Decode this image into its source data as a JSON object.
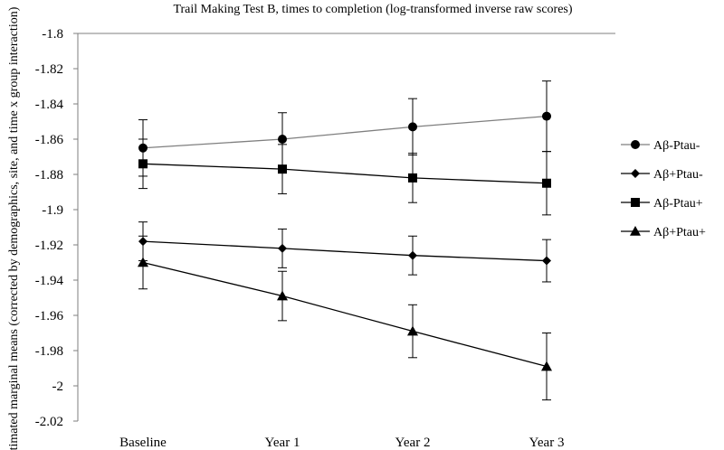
{
  "chart_data": {
    "type": "line",
    "title": "Trail Making Test B, times to completion (log-transformed inverse raw scores)",
    "xlabel": "",
    "ylabel": "Estimated marginal means (corrected by demographics, site, and time x group interaction)",
    "categories": [
      "Baseline",
      "Year 1",
      "Year 2",
      "Year 3"
    ],
    "ylim": [
      -2.02,
      -1.8
    ],
    "yticks": [
      -1.8,
      -1.82,
      -1.84,
      -1.86,
      -1.88,
      -1.9,
      -1.92,
      -1.94,
      -1.96,
      -1.98,
      -2,
      -2.02
    ],
    "ytick_labels": [
      "-1.8",
      "-1.82",
      "-1.84",
      "-1.86",
      "-1.88",
      "-1.9",
      "-1.92",
      "-1.94",
      "-1.96",
      "-1.98",
      "-2",
      "-2.02"
    ],
    "grid": false,
    "legend_position": "right",
    "series": [
      {
        "name": "Aβ-Ptau-",
        "marker": "circle",
        "line_color": "#7f7f7f",
        "values": [
          -1.865,
          -1.86,
          -1.853,
          -1.847
        ],
        "error": [
          0.016,
          0.015,
          0.016,
          0.02
        ]
      },
      {
        "name": "Aβ+Ptau-",
        "marker": "diamond",
        "line_color": "#000000",
        "values": [
          -1.918,
          -1.922,
          -1.926,
          -1.929
        ],
        "error": [
          0.011,
          0.011,
          0.011,
          0.012
        ]
      },
      {
        "name": "Aβ-Ptau+",
        "marker": "square",
        "line_color": "#000000",
        "values": [
          -1.874,
          -1.877,
          -1.882,
          -1.885
        ],
        "error": [
          0.014,
          0.014,
          0.014,
          0.018
        ]
      },
      {
        "name": "Aβ+Ptau+",
        "marker": "triangle",
        "line_color": "#000000",
        "values": [
          -1.93,
          -1.949,
          -1.969,
          -1.989
        ],
        "error": [
          0.015,
          0.014,
          0.015,
          0.019
        ]
      }
    ]
  }
}
